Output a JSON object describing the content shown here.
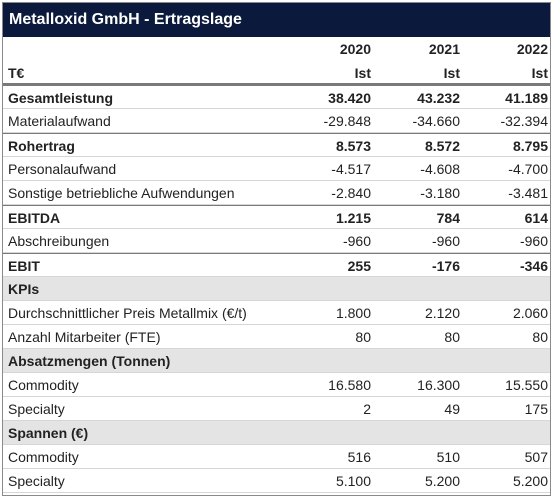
{
  "header": {
    "title": "Metalloxid GmbH - Ertragslage",
    "unit": "T€"
  },
  "columns": [
    {
      "year": "2020",
      "basis": "Ist"
    },
    {
      "year": "2021",
      "basis": "Ist"
    },
    {
      "year": "2022",
      "basis": "Ist"
    }
  ],
  "rows": [
    {
      "label": "Gesamtleistung",
      "values": [
        "38.420",
        "43.232",
        "41.189"
      ],
      "bold": true
    },
    {
      "label": "Materialaufwand",
      "values": [
        "-29.848",
        "-34.660",
        "-32.394"
      ]
    },
    {
      "label": "Rohertrag",
      "values": [
        "8.573",
        "8.572",
        "8.795"
      ],
      "bold": true
    },
    {
      "label": "Personalaufwand",
      "values": [
        "-4.517",
        "-4.608",
        "-4.700"
      ]
    },
    {
      "label": "Sonstige betriebliche Aufwendungen",
      "values": [
        "-2.840",
        "-3.180",
        "-3.481"
      ]
    },
    {
      "label": "EBITDA",
      "values": [
        "1.215",
        "784",
        "614"
      ],
      "bold": true
    },
    {
      "label": "Abschreibungen",
      "values": [
        "-960",
        "-960",
        "-960"
      ]
    },
    {
      "label": "EBIT",
      "values": [
        "255",
        "-176",
        "-346"
      ],
      "bold": true
    },
    {
      "label": "KPIs"
    },
    {
      "label": "Durchschnittlicher Preis Metallmix (€/t)",
      "values": [
        "1.800",
        "2.120",
        "2.060"
      ]
    },
    {
      "label": "Anzahl Mitarbeiter (FTE)",
      "values": [
        "80",
        "80",
        "80"
      ]
    },
    {
      "label": "Absatzmengen (Tonnen)"
    },
    {
      "label": "Commodity",
      "values": [
        "16.580",
        "16.300",
        "15.550"
      ]
    },
    {
      "label": "Specialty",
      "values": [
        "2",
        "49",
        "175"
      ]
    },
    {
      "label": "Spannen (€)"
    },
    {
      "label": "Commodity",
      "values": [
        "516",
        "510",
        "507"
      ]
    },
    {
      "label": "Specialty",
      "values": [
        "5.100",
        "5.200",
        "5.200"
      ]
    }
  ]
}
